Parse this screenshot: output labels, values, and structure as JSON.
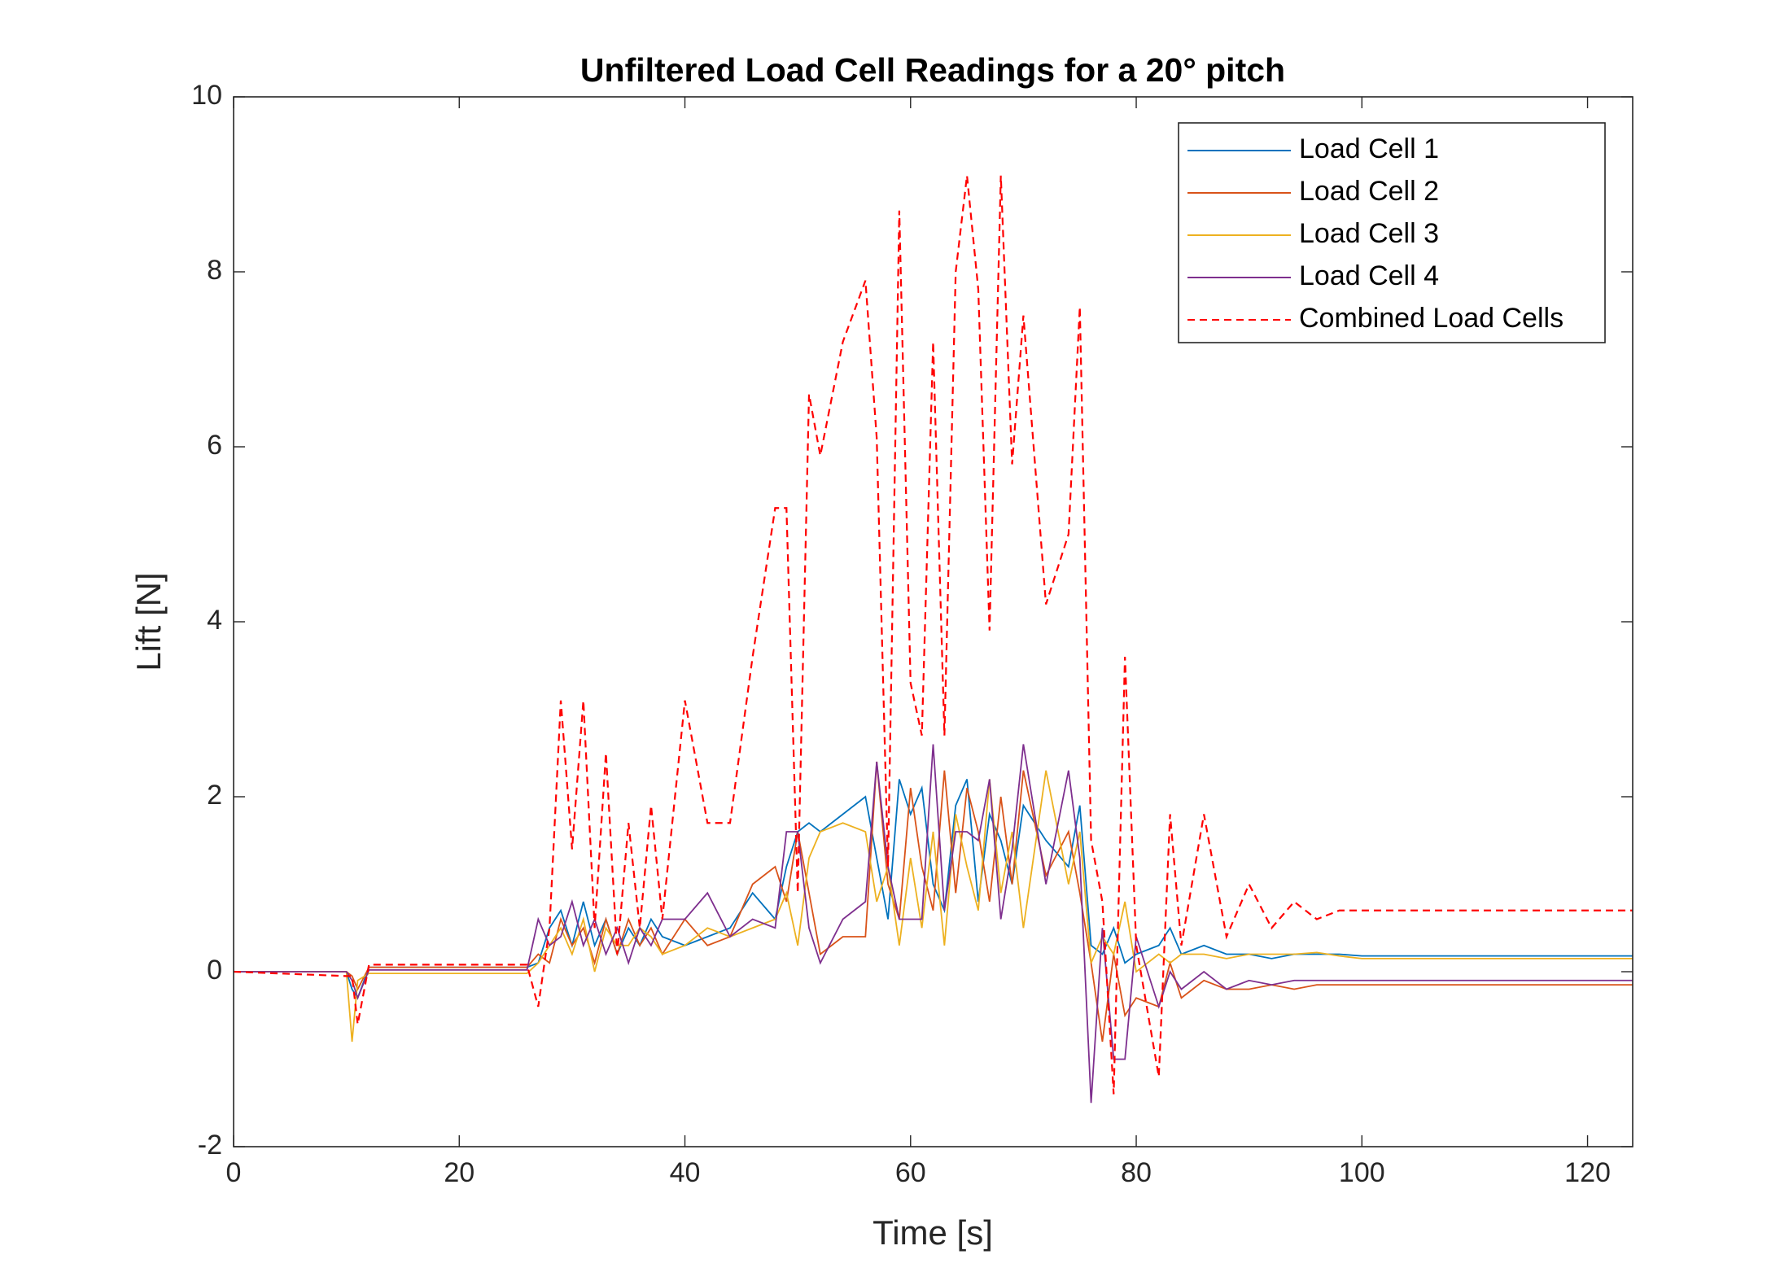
{
  "chart_data": {
    "type": "line",
    "title": "Unfiltered Load Cell Readings for a 20° pitch",
    "xlabel": "Time [s]",
    "ylabel": "Lift [N]",
    "xlim": [
      0,
      124
    ],
    "ylim": [
      -2,
      10
    ],
    "xticks": [
      0,
      20,
      40,
      60,
      80,
      100,
      120
    ],
    "yticks": [
      -2,
      0,
      2,
      4,
      6,
      8,
      10
    ],
    "legend": "northeast",
    "grid": false,
    "x": [
      0,
      10,
      10.5,
      11,
      12,
      26,
      27,
      28,
      29,
      30,
      31,
      32,
      33,
      34,
      35,
      36,
      37,
      38,
      40,
      42,
      44,
      46,
      48,
      49,
      50,
      51,
      52,
      54,
      56,
      57,
      58,
      59,
      60,
      61,
      62,
      63,
      64,
      65,
      66,
      67,
      68,
      69,
      70,
      72,
      74,
      75,
      76,
      77,
      78,
      79,
      80,
      82,
      83,
      84,
      86,
      88,
      90,
      92,
      94,
      96,
      98,
      100,
      124
    ],
    "series": [
      {
        "name": "Load Cell 1",
        "color": "#0072bd",
        "dashed": false,
        "values": [
          0,
          0,
          -0.2,
          -0.3,
          0.05,
          0.05,
          0.1,
          0.5,
          0.7,
          0.3,
          0.8,
          0.3,
          0.6,
          0.2,
          0.5,
          0.3,
          0.6,
          0.4,
          0.3,
          0.4,
          0.5,
          0.9,
          0.6,
          1.2,
          1.6,
          1.7,
          1.6,
          1.8,
          2.0,
          1.3,
          0.6,
          2.2,
          1.8,
          2.1,
          1.0,
          0.7,
          1.9,
          2.2,
          0.8,
          1.8,
          1.5,
          1.0,
          1.9,
          1.5,
          1.2,
          1.9,
          0.3,
          0.2,
          0.5,
          0.1,
          0.2,
          0.3,
          0.5,
          0.2,
          0.3,
          0.2,
          0.2,
          0.15,
          0.2,
          0.2,
          0.2,
          0.18,
          0.18
        ]
      },
      {
        "name": "Load Cell 2",
        "color": "#d95319",
        "dashed": false,
        "values": [
          0,
          0,
          -0.05,
          -0.2,
          0.05,
          0.05,
          0.2,
          0.1,
          0.6,
          0.3,
          0.5,
          0.1,
          0.6,
          0.2,
          0.6,
          0.3,
          0.5,
          0.2,
          0.6,
          0.3,
          0.4,
          1.0,
          1.2,
          0.8,
          1.6,
          0.9,
          0.2,
          0.4,
          0.4,
          2.4,
          1.0,
          0.6,
          2.1,
          1.2,
          0.7,
          2.3,
          0.9,
          2.1,
          1.6,
          0.8,
          2.0,
          1.0,
          2.3,
          1.1,
          1.6,
          0.9,
          0.1,
          -0.8,
          0.2,
          -0.5,
          -0.3,
          -0.4,
          0.1,
          -0.3,
          -0.1,
          -0.2,
          -0.2,
          -0.15,
          -0.2,
          -0.15,
          -0.15,
          -0.15,
          -0.15
        ]
      },
      {
        "name": "Load Cell 3",
        "color": "#edb120",
        "dashed": false,
        "values": [
          0,
          0,
          -0.8,
          -0.1,
          -0.02,
          -0.02,
          0.1,
          0.3,
          0.5,
          0.2,
          0.6,
          0.0,
          0.5,
          0.3,
          0.3,
          0.5,
          0.4,
          0.2,
          0.3,
          0.5,
          0.4,
          0.5,
          0.6,
          0.9,
          0.3,
          1.3,
          1.6,
          1.7,
          1.6,
          0.8,
          1.2,
          0.3,
          1.3,
          0.5,
          1.6,
          0.3,
          1.8,
          1.2,
          0.7,
          2.2,
          0.9,
          1.6,
          0.5,
          2.3,
          1.0,
          1.6,
          0.1,
          0.4,
          0.2,
          0.8,
          0.0,
          0.2,
          0.1,
          0.2,
          0.2,
          0.15,
          0.2,
          0.2,
          0.2,
          0.22,
          0.18,
          0.15,
          0.15
        ]
      },
      {
        "name": "Load Cell 4",
        "color": "#7e2f8e",
        "dashed": false,
        "values": [
          0,
          0,
          -0.1,
          -0.3,
          0.02,
          0.02,
          0.6,
          0.3,
          0.4,
          0.8,
          0.3,
          0.6,
          0.2,
          0.5,
          0.1,
          0.5,
          0.3,
          0.6,
          0.6,
          0.9,
          0.4,
          0.6,
          0.5,
          1.6,
          1.6,
          0.5,
          0.1,
          0.6,
          0.8,
          2.4,
          1.2,
          0.6,
          0.6,
          0.6,
          2.6,
          0.7,
          1.6,
          1.6,
          1.5,
          2.2,
          0.6,
          1.4,
          2.6,
          1.0,
          2.3,
          1.3,
          -1.5,
          0.5,
          -1.0,
          -1.0,
          0.4,
          -0.4,
          0.0,
          -0.2,
          0.0,
          -0.2,
          -0.1,
          -0.15,
          -0.1,
          -0.1,
          -0.1,
          -0.1,
          -0.1
        ]
      },
      {
        "name": "Combined Load Cells",
        "color": "#ff0000",
        "dashed": true,
        "values": [
          0,
          -0.05,
          -0.05,
          -0.6,
          0.08,
          0.08,
          -0.4,
          0.5,
          3.1,
          1.4,
          3.1,
          0.5,
          2.5,
          0.2,
          1.7,
          0.5,
          1.9,
          0.6,
          3.1,
          1.7,
          1.7,
          3.6,
          5.3,
          5.3,
          0.9,
          6.6,
          5.9,
          7.2,
          7.9,
          6.1,
          1.2,
          8.7,
          3.3,
          2.7,
          7.2,
          2.7,
          8.0,
          9.1,
          7.8,
          3.9,
          9.1,
          5.8,
          7.5,
          4.2,
          5.0,
          7.6,
          1.5,
          0.8,
          -1.4,
          3.6,
          0.3,
          -1.2,
          1.8,
          0.3,
          1.8,
          0.4,
          1.0,
          0.5,
          0.8,
          0.6,
          0.7,
          0.7,
          0.7
        ]
      }
    ]
  }
}
